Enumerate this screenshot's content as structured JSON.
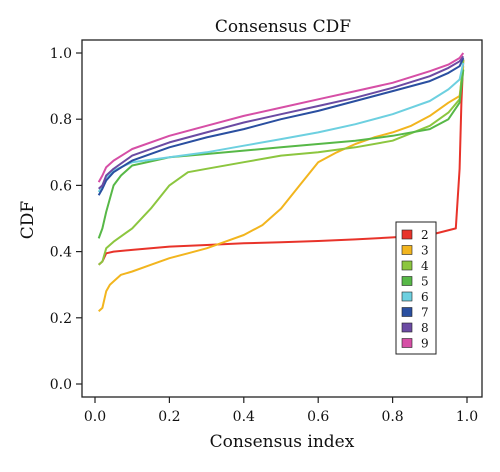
{
  "chart_data": {
    "type": "line",
    "title": "Consensus CDF",
    "xlabel": "Consensus index",
    "ylabel": "CDF",
    "xlim": [
      0,
      1
    ],
    "ylim": [
      0,
      1
    ],
    "xticks": [
      "0.0",
      "0.2",
      "0.4",
      "0.6",
      "0.8",
      "1.0"
    ],
    "yticks": [
      "0.0",
      "0.2",
      "0.4",
      "0.6",
      "0.8",
      "1.0"
    ],
    "grid": false,
    "legend_position": "bottom-right",
    "series": [
      {
        "name": "2",
        "color": "#e8332a",
        "x": [
          0.01,
          0.02,
          0.03,
          0.05,
          0.1,
          0.2,
          0.3,
          0.4,
          0.5,
          0.6,
          0.7,
          0.8,
          0.9,
          0.97,
          0.98,
          0.985,
          0.99
        ],
        "y": [
          0.36,
          0.37,
          0.395,
          0.4,
          0.405,
          0.415,
          0.42,
          0.425,
          0.428,
          0.432,
          0.437,
          0.443,
          0.45,
          0.47,
          0.65,
          0.85,
          0.98
        ]
      },
      {
        "name": "3",
        "color": "#f2b51e",
        "x": [
          0.01,
          0.02,
          0.03,
          0.04,
          0.05,
          0.07,
          0.1,
          0.15,
          0.2,
          0.25,
          0.3,
          0.35,
          0.4,
          0.45,
          0.5,
          0.55,
          0.6,
          0.65,
          0.7,
          0.75,
          0.8,
          0.85,
          0.9,
          0.95,
          0.98,
          0.99
        ],
        "y": [
          0.22,
          0.23,
          0.28,
          0.3,
          0.31,
          0.33,
          0.34,
          0.36,
          0.38,
          0.395,
          0.41,
          0.43,
          0.45,
          0.48,
          0.53,
          0.6,
          0.67,
          0.7,
          0.725,
          0.745,
          0.76,
          0.78,
          0.81,
          0.85,
          0.87,
          0.96
        ]
      },
      {
        "name": "4",
        "color": "#8cc63f",
        "x": [
          0.01,
          0.02,
          0.03,
          0.05,
          0.1,
          0.15,
          0.2,
          0.25,
          0.3,
          0.4,
          0.5,
          0.6,
          0.7,
          0.8,
          0.9,
          0.95,
          0.98,
          0.99
        ],
        "y": [
          0.36,
          0.37,
          0.41,
          0.43,
          0.47,
          0.53,
          0.6,
          0.64,
          0.65,
          0.67,
          0.69,
          0.7,
          0.715,
          0.735,
          0.78,
          0.82,
          0.86,
          0.98
        ]
      },
      {
        "name": "5",
        "color": "#57b847",
        "x": [
          0.01,
          0.02,
          0.03,
          0.04,
          0.05,
          0.07,
          0.1,
          0.2,
          0.3,
          0.4,
          0.5,
          0.6,
          0.7,
          0.8,
          0.9,
          0.95,
          0.98,
          0.99
        ],
        "y": [
          0.44,
          0.47,
          0.52,
          0.56,
          0.6,
          0.63,
          0.66,
          0.685,
          0.695,
          0.705,
          0.715,
          0.725,
          0.735,
          0.75,
          0.77,
          0.8,
          0.85,
          0.95
        ]
      },
      {
        "name": "6",
        "color": "#6dd0e0",
        "x": [
          0.01,
          0.02,
          0.03,
          0.05,
          0.1,
          0.2,
          0.3,
          0.4,
          0.5,
          0.6,
          0.7,
          0.8,
          0.9,
          0.95,
          0.98,
          0.99
        ],
        "y": [
          0.58,
          0.6,
          0.625,
          0.645,
          0.67,
          0.685,
          0.7,
          0.72,
          0.74,
          0.76,
          0.785,
          0.815,
          0.855,
          0.89,
          0.92,
          0.97
        ]
      },
      {
        "name": "7",
        "color": "#2a4fa0",
        "x": [
          0.01,
          0.02,
          0.03,
          0.05,
          0.1,
          0.2,
          0.3,
          0.4,
          0.5,
          0.6,
          0.7,
          0.8,
          0.9,
          0.95,
          0.98,
          0.99
        ],
        "y": [
          0.57,
          0.59,
          0.615,
          0.64,
          0.675,
          0.715,
          0.745,
          0.77,
          0.8,
          0.825,
          0.855,
          0.885,
          0.915,
          0.94,
          0.96,
          0.985
        ]
      },
      {
        "name": "8",
        "color": "#6b4ba3",
        "x": [
          0.01,
          0.02,
          0.03,
          0.05,
          0.1,
          0.2,
          0.3,
          0.4,
          0.5,
          0.6,
          0.7,
          0.8,
          0.9,
          0.95,
          0.98,
          0.99
        ],
        "y": [
          0.59,
          0.6,
          0.63,
          0.65,
          0.69,
          0.73,
          0.76,
          0.79,
          0.815,
          0.84,
          0.865,
          0.895,
          0.93,
          0.955,
          0.975,
          0.99
        ]
      },
      {
        "name": "9",
        "color": "#d64fa6",
        "x": [
          0.01,
          0.02,
          0.03,
          0.05,
          0.1,
          0.2,
          0.3,
          0.4,
          0.5,
          0.6,
          0.7,
          0.8,
          0.9,
          0.95,
          0.98,
          0.99
        ],
        "y": [
          0.61,
          0.63,
          0.655,
          0.675,
          0.71,
          0.75,
          0.78,
          0.81,
          0.835,
          0.86,
          0.885,
          0.91,
          0.945,
          0.965,
          0.985,
          1.0
        ]
      }
    ]
  }
}
